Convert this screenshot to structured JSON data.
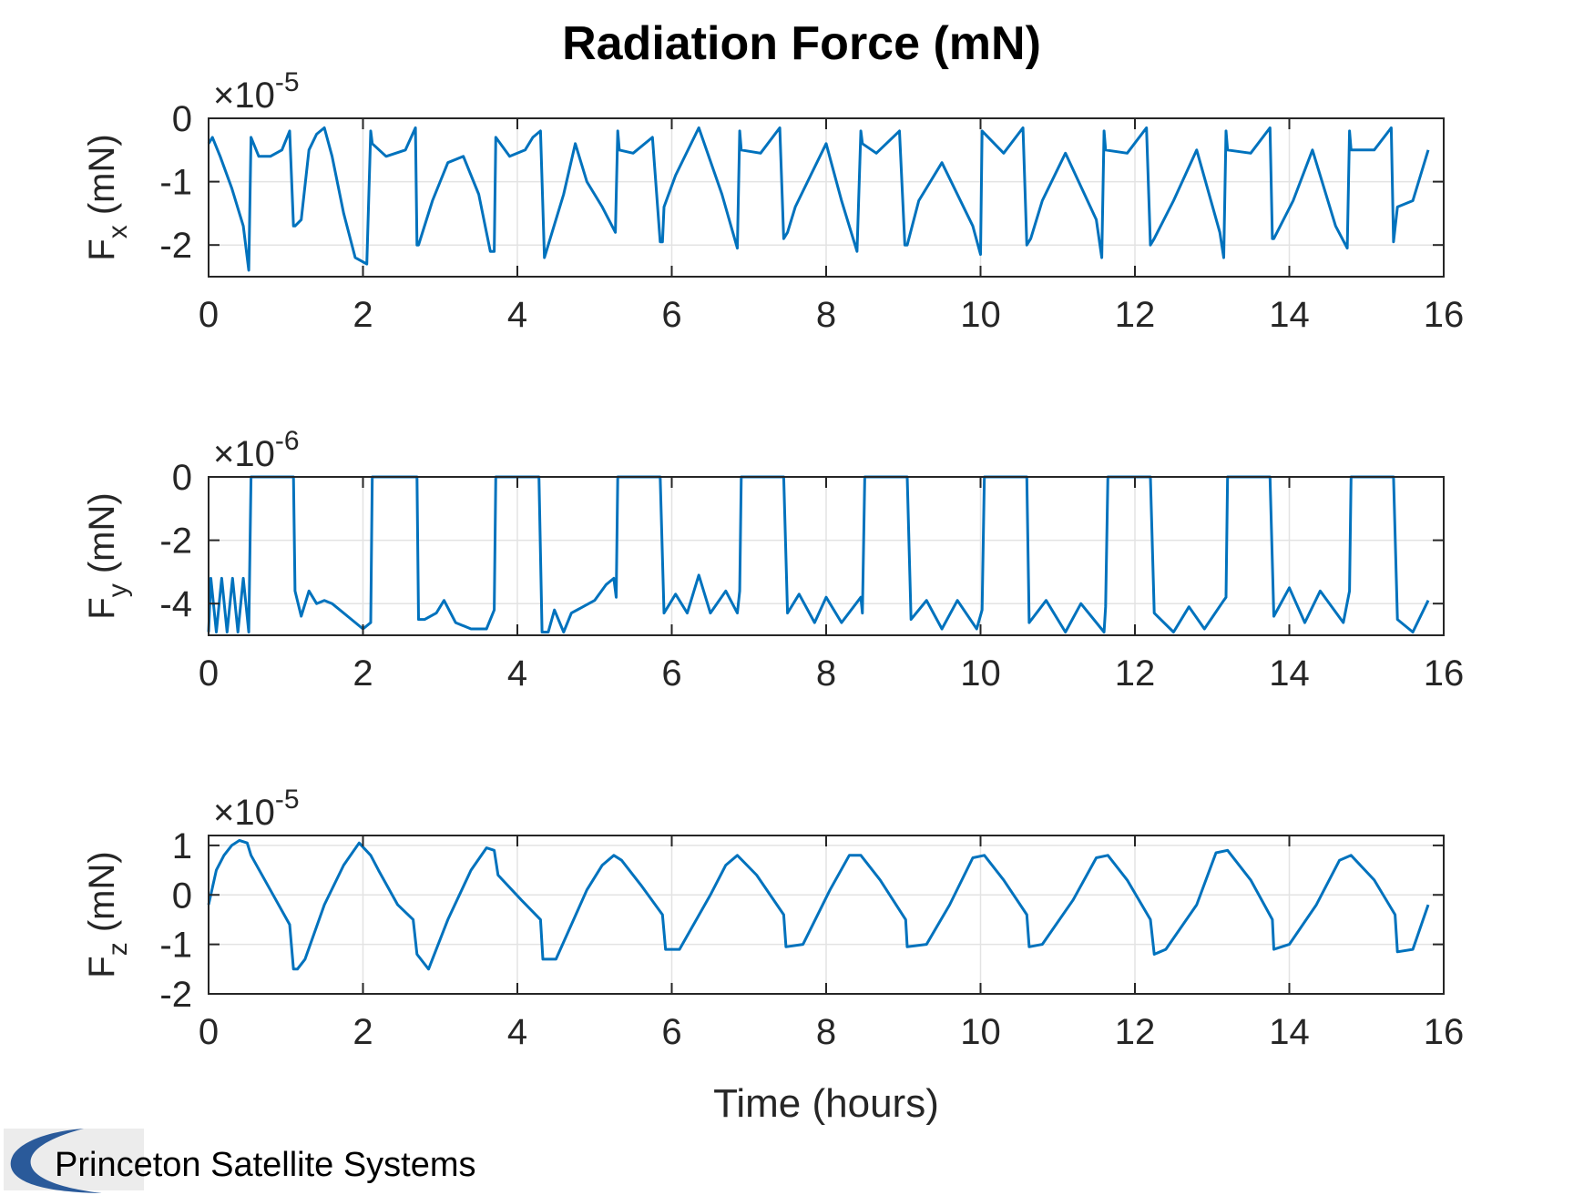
{
  "logo": {
    "text": "Princeton Satellite Systems"
  },
  "chart_data": [
    {
      "type": "line",
      "title": "Radiation Force (mN)",
      "ylabel": {
        "main": "F",
        "sub": "x",
        "unit": " (mN)"
      },
      "multiplier": {
        "prefix": "×10",
        "exp": "-5"
      },
      "xlim": [
        0,
        16
      ],
      "ylim": [
        -2.5,
        0
      ],
      "xticks": [
        "0",
        "2",
        "4",
        "6",
        "8",
        "10",
        "12",
        "14",
        "16"
      ],
      "yticks": [
        "0",
        "-1",
        "-2"
      ],
      "grid": true,
      "color": "#0072BD",
      "x": [
        0,
        0.05,
        0.15,
        0.3,
        0.45,
        0.52,
        0.55,
        0.65,
        0.8,
        0.95,
        1.05,
        1.1,
        1.12,
        1.2,
        1.3,
        1.4,
        1.5,
        1.6,
        1.75,
        1.9,
        2.05,
        2.1,
        2.12,
        2.3,
        2.55,
        2.68,
        2.7,
        2.72,
        2.9,
        3.1,
        3.3,
        3.5,
        3.65,
        3.7,
        3.72,
        3.9,
        4.1,
        4.2,
        4.3,
        4.35,
        4.45,
        4.6,
        4.75,
        4.9,
        5.1,
        5.27,
        5.3,
        5.32,
        5.5,
        5.75,
        5.85,
        5.88,
        5.9,
        6.05,
        6.35,
        6.65,
        6.85,
        6.88,
        6.9,
        7.15,
        7.4,
        7.45,
        7.5,
        7.6,
        7.8,
        8.0,
        8.2,
        8.4,
        8.45,
        8.47,
        8.65,
        8.95,
        9.02,
        9.05,
        9.2,
        9.5,
        9.9,
        10.0,
        10.02,
        10.3,
        10.55,
        10.6,
        10.65,
        10.8,
        11.1,
        11.5,
        11.57,
        11.6,
        11.62,
        11.9,
        12.15,
        12.2,
        12.25,
        12.5,
        12.8,
        13.1,
        13.15,
        13.18,
        13.2,
        13.5,
        13.75,
        13.78,
        13.8,
        14.05,
        14.3,
        14.6,
        14.75,
        14.78,
        14.8,
        15.1,
        15.32,
        15.35,
        15.4,
        15.6,
        15.8
      ],
      "y": [
        -0.4,
        -0.3,
        -0.6,
        -1.1,
        -1.7,
        -2.4,
        -0.3,
        -0.6,
        -0.6,
        -0.5,
        -0.2,
        -1.7,
        -1.7,
        -1.6,
        -0.5,
        -0.25,
        -0.15,
        -0.6,
        -1.5,
        -2.2,
        -2.3,
        -0.2,
        -0.4,
        -0.6,
        -0.5,
        -0.15,
        -2.0,
        -2.0,
        -1.3,
        -0.7,
        -0.6,
        -1.2,
        -2.1,
        -2.1,
        -0.3,
        -0.6,
        -0.5,
        -0.3,
        -0.2,
        -2.2,
        -1.8,
        -1.2,
        -0.4,
        -1.0,
        -1.4,
        -1.8,
        -0.2,
        -0.5,
        -0.55,
        -0.3,
        -1.95,
        -1.95,
        -1.4,
        -0.9,
        -0.15,
        -1.2,
        -2.05,
        -0.2,
        -0.5,
        -0.55,
        -0.15,
        -1.9,
        -1.8,
        -1.4,
        -0.9,
        -0.4,
        -1.3,
        -2.1,
        -0.2,
        -0.4,
        -0.55,
        -0.2,
        -2.0,
        -2.0,
        -1.3,
        -0.7,
        -1.7,
        -2.15,
        -0.2,
        -0.55,
        -0.15,
        -2.0,
        -1.9,
        -1.3,
        -0.55,
        -1.6,
        -2.2,
        -0.2,
        -0.5,
        -0.55,
        -0.15,
        -2.0,
        -1.9,
        -1.3,
        -0.5,
        -1.8,
        -2.2,
        -0.2,
        -0.5,
        -0.55,
        -0.15,
        -1.9,
        -1.9,
        -1.3,
        -0.5,
        -1.7,
        -2.05,
        -0.2,
        -0.5,
        -0.5,
        -0.15,
        -1.95,
        -1.4,
        -1.3,
        -0.5
      ]
    },
    {
      "type": "line",
      "ylabel": {
        "main": "F",
        "sub": "y",
        "unit": " (mN)"
      },
      "multiplier": {
        "prefix": "×10",
        "exp": "-6"
      },
      "xlim": [
        0,
        16
      ],
      "ylim": [
        -5,
        0
      ],
      "xticks": [
        "0",
        "2",
        "4",
        "6",
        "8",
        "10",
        "12",
        "14",
        "16"
      ],
      "yticks": [
        "0",
        "-2",
        "-4"
      ],
      "grid": true,
      "color": "#0072BD",
      "x": [
        0,
        0.03,
        0.1,
        0.17,
        0.24,
        0.31,
        0.38,
        0.45,
        0.52,
        0.55,
        1.1,
        1.12,
        1.2,
        1.3,
        1.4,
        1.5,
        1.6,
        1.8,
        2.0,
        2.1,
        2.12,
        2.7,
        2.72,
        2.8,
        2.95,
        3.05,
        3.2,
        3.4,
        3.6,
        3.7,
        3.72,
        4.28,
        4.32,
        4.4,
        4.48,
        4.6,
        4.7,
        4.85,
        5.0,
        5.15,
        5.25,
        5.28,
        5.3,
        5.85,
        5.9,
        6.05,
        6.2,
        6.35,
        6.5,
        6.7,
        6.85,
        6.88,
        6.9,
        7.45,
        7.5,
        7.65,
        7.85,
        8.0,
        8.2,
        8.45,
        8.47,
        8.5,
        9.05,
        9.1,
        9.3,
        9.5,
        9.7,
        9.95,
        10.02,
        10.05,
        10.6,
        10.63,
        10.85,
        11.1,
        11.3,
        11.6,
        11.62,
        11.65,
        12.2,
        12.25,
        12.5,
        12.7,
        12.9,
        13.15,
        13.18,
        13.2,
        13.75,
        13.8,
        14.0,
        14.2,
        14.4,
        14.7,
        14.78,
        14.8,
        15.35,
        15.4,
        15.6,
        15.8
      ],
      "y": [
        -4.9,
        -3.2,
        -4.9,
        -3.2,
        -4.9,
        -3.2,
        -4.9,
        -3.2,
        -4.9,
        0,
        0,
        -3.6,
        -4.4,
        -3.6,
        -4.0,
        -3.9,
        -4.0,
        -4.4,
        -4.8,
        -4.6,
        0,
        0,
        -4.5,
        -4.5,
        -4.3,
        -3.9,
        -4.6,
        -4.8,
        -4.8,
        -4.2,
        0,
        0,
        -4.9,
        -4.9,
        -4.2,
        -4.9,
        -4.3,
        -4.1,
        -3.9,
        -3.4,
        -3.2,
        -3.8,
        0,
        0,
        -4.3,
        -3.7,
        -4.3,
        -3.1,
        -4.3,
        -3.6,
        -4.3,
        -3.6,
        0,
        0,
        -4.3,
        -3.7,
        -4.6,
        -3.8,
        -4.6,
        -3.8,
        -4.3,
        0,
        0,
        -4.5,
        -3.9,
        -4.8,
        -3.9,
        -4.8,
        -4.2,
        0,
        0,
        -4.6,
        -3.9,
        -4.9,
        -4.0,
        -4.9,
        -4.1,
        0,
        0,
        -4.3,
        -4.9,
        -4.1,
        -4.8,
        -3.9,
        -3.8,
        0,
        0,
        -4.4,
        -3.5,
        -4.6,
        -3.6,
        -4.6,
        -3.6,
        0,
        0,
        -4.5,
        -4.9,
        -3.9
      ]
    },
    {
      "type": "line",
      "ylabel": {
        "main": "F",
        "sub": "z",
        "unit": " (mN)"
      },
      "multiplier": {
        "prefix": "×10",
        "exp": "-5"
      },
      "xlabel": "Time (hours)",
      "xlim": [
        0,
        16
      ],
      "ylim": [
        -2,
        1.2
      ],
      "xticks": [
        "0",
        "2",
        "4",
        "6",
        "8",
        "10",
        "12",
        "14",
        "16"
      ],
      "yticks": [
        "1",
        "0",
        "-1",
        "-2"
      ],
      "grid": true,
      "color": "#0072BD",
      "x": [
        0,
        0.1,
        0.2,
        0.3,
        0.4,
        0.5,
        0.55,
        0.8,
        1.05,
        1.1,
        1.15,
        1.25,
        1.5,
        1.75,
        1.95,
        2.1,
        2.2,
        2.45,
        2.65,
        2.7,
        2.85,
        3.1,
        3.4,
        3.6,
        3.7,
        3.75,
        4.05,
        4.3,
        4.33,
        4.5,
        4.9,
        5.1,
        5.25,
        5.35,
        5.6,
        5.88,
        5.92,
        6.1,
        6.5,
        6.7,
        6.85,
        7.1,
        7.45,
        7.48,
        7.7,
        8.05,
        8.3,
        8.45,
        8.7,
        9.03,
        9.05,
        9.3,
        9.6,
        9.9,
        10.05,
        10.3,
        10.6,
        10.63,
        10.8,
        11.2,
        11.5,
        11.65,
        11.9,
        12.2,
        12.25,
        12.4,
        12.8,
        13.05,
        13.2,
        13.5,
        13.78,
        13.8,
        14.0,
        14.35,
        14.65,
        14.8,
        15.1,
        15.37,
        15.4,
        15.6,
        15.8
      ],
      "y": [
        -0.2,
        0.5,
        0.8,
        1.0,
        1.1,
        1.05,
        0.8,
        0.1,
        -0.6,
        -1.5,
        -1.5,
        -1.3,
        -0.2,
        0.6,
        1.05,
        0.8,
        0.5,
        -0.2,
        -0.5,
        -1.2,
        -1.5,
        -0.5,
        0.5,
        0.95,
        0.9,
        0.4,
        -0.1,
        -0.5,
        -1.3,
        -1.3,
        0.1,
        0.6,
        0.8,
        0.7,
        0.2,
        -0.4,
        -1.1,
        -1.1,
        0.0,
        0.6,
        0.8,
        0.4,
        -0.4,
        -1.05,
        -1.0,
        0.1,
        0.8,
        0.8,
        0.3,
        -0.5,
        -1.05,
        -1.0,
        -0.2,
        0.75,
        0.8,
        0.3,
        -0.4,
        -1.05,
        -1.0,
        -0.1,
        0.75,
        0.8,
        0.3,
        -0.5,
        -1.2,
        -1.1,
        -0.2,
        0.85,
        0.9,
        0.3,
        -0.5,
        -1.1,
        -1.0,
        -0.2,
        0.7,
        0.8,
        0.3,
        -0.4,
        -1.15,
        -1.1,
        -0.2
      ]
    }
  ]
}
